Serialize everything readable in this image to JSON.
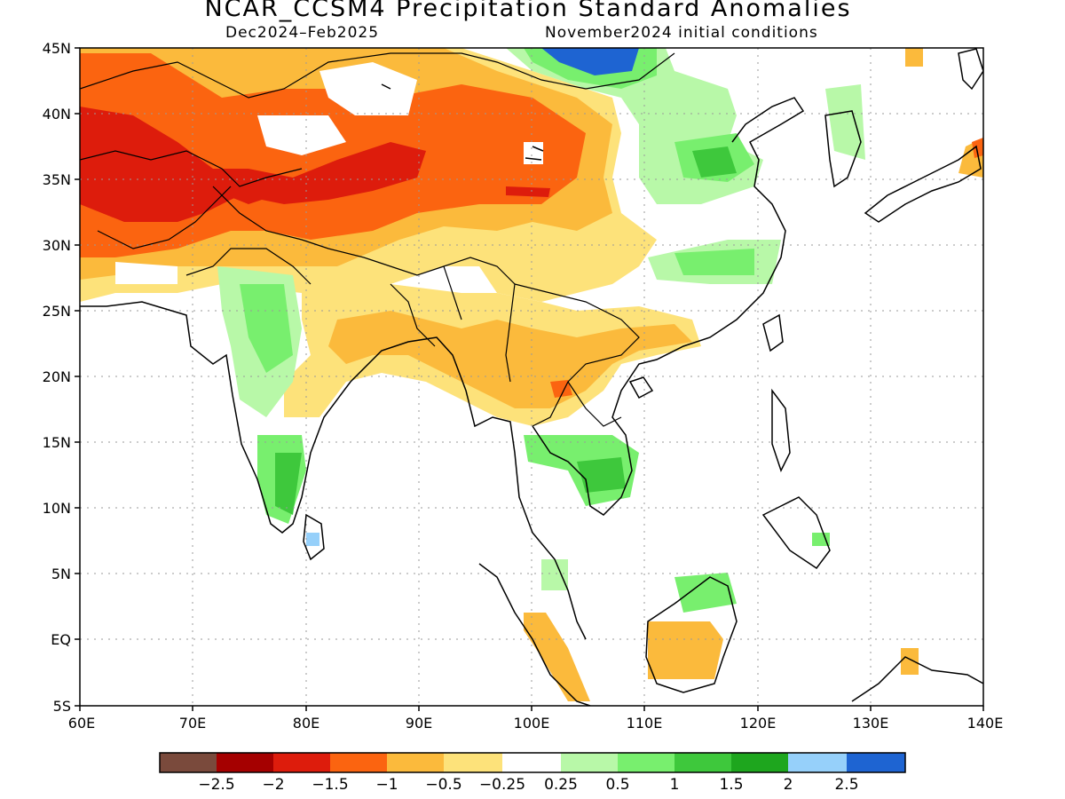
{
  "title": "NCAR_CCSM4 Precipitation Standard Anomalies",
  "subtitle_left": "Dec2024–Feb2025",
  "subtitle_right": "November2024 initial conditions",
  "lat_labels": [
    "45N",
    "40N",
    "35N",
    "30N",
    "25N",
    "20N",
    "15N",
    "10N",
    "5N",
    "EQ",
    "5S"
  ],
  "lon_labels": [
    "60E",
    "70E",
    "80E",
    "90E",
    "100E",
    "110E",
    "120E",
    "130E",
    "140E"
  ],
  "colorbar": {
    "colors": [
      "#7a4a3c",
      "#a50000",
      "#dd1c0c",
      "#fb6410",
      "#fbba3c",
      "#fde27a",
      "#ffffff",
      "#b8f8a8",
      "#78ef6e",
      "#3ec83c",
      "#1ea61e",
      "#96d0fa",
      "#1e64d2"
    ],
    "labels": [
      "−2.5",
      "−2",
      "−1.5",
      "−1",
      "−0.5",
      "−0.25",
      "0.25",
      "0.5",
      "1",
      "1.5",
      "2",
      "2.5"
    ]
  },
  "colors": {
    "frame": "#000000",
    "grid": "#9a9a9a",
    "coast": "#000000"
  }
}
